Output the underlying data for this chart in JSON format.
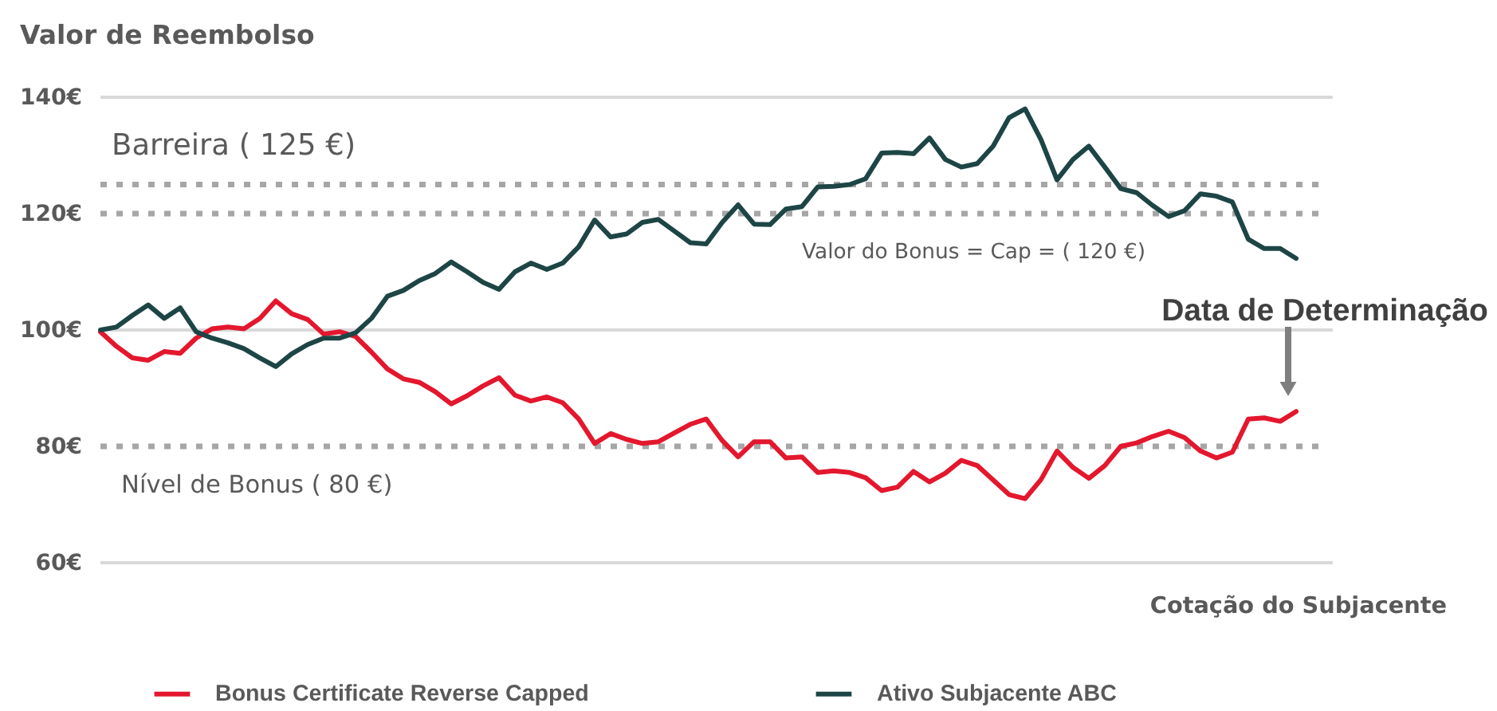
{
  "chart_data": {
    "type": "line",
    "ylabel": "Valor de Reembolso",
    "xlabel": "Cotação do Subjacente",
    "categories": [
      null,
      null,
      null,
      null,
      null,
      null,
      null,
      null,
      null,
      null,
      null,
      null,
      null,
      null,
      null,
      null,
      null,
      null,
      null,
      null,
      null,
      null,
      null,
      null,
      null,
      null,
      null,
      null,
      null,
      null,
      null,
      null,
      null,
      null,
      null,
      null,
      null,
      null,
      null,
      null,
      null,
      null,
      null,
      null,
      null,
      null,
      null,
      null,
      null,
      null,
      null,
      null,
      null,
      null,
      null,
      null,
      null,
      null,
      null,
      null,
      null,
      null,
      null,
      null,
      null,
      null,
      null,
      null,
      null,
      null,
      null,
      null,
      null,
      null,
      null,
      null
    ],
    "series": [
      {
        "name": "Bonus Certificate Reverse Capped",
        "color": "#e3172d",
        "values": [
          99.7,
          97.2,
          95.2,
          94.8,
          96.3,
          96,
          98.6,
          100.2,
          100.5,
          100.2,
          102,
          105,
          102.8,
          101.8,
          99.3,
          99.7,
          98.9,
          96.2,
          93.3,
          91.6,
          91,
          89.4,
          87.3,
          88.7,
          90.4,
          91.8,
          88.8,
          87.8,
          88.5,
          87.5,
          84.7,
          80.5,
          82.2,
          81.2,
          80.5,
          80.8,
          82.3,
          83.8,
          84.7,
          81,
          78.2,
          80.8,
          80.8,
          78,
          78.2,
          75.5,
          75.8,
          75.5,
          74.6,
          72.4,
          73,
          75.7,
          73.9,
          75.4,
          77.6,
          76.7,
          74.2,
          71.7,
          71,
          74.3,
          79.2,
          76.4,
          74.5,
          76.7,
          80,
          80.6,
          81.7,
          82.6,
          81.5,
          79.2,
          78,
          79,
          84.7,
          84.9,
          84.3,
          86
        ]
      },
      {
        "name": "Ativo Subjacente ABC",
        "color": "#1e4546",
        "values": [
          100,
          100.5,
          102.5,
          104.3,
          102,
          103.8,
          99.7,
          98.6,
          97.8,
          96.8,
          95.2,
          93.7,
          95.9,
          97.5,
          98.6,
          98.6,
          99.5,
          102,
          105.8,
          106.8,
          108.5,
          109.7,
          111.7,
          110,
          108.2,
          107,
          110,
          111.5,
          110.4,
          111.5,
          114.3,
          118.9,
          116,
          116.5,
          118.5,
          119,
          117,
          115,
          114.8,
          118.5,
          121.5,
          118.2,
          118.1,
          120.8,
          121.2,
          124.6,
          124.7,
          125,
          126,
          130.4,
          130.5,
          130.3,
          133,
          129.3,
          128,
          128.6,
          131.6,
          136.5,
          138,
          132.7,
          125.8,
          129.3,
          131.6,
          128,
          124.3,
          123.6,
          121.4,
          119.5,
          120.5,
          123.4,
          123,
          122,
          115.6,
          114,
          114,
          112.3
        ]
      }
    ],
    "ylim": [
      60,
      140
    ],
    "yticks": [
      {
        "value": 60,
        "label": "60€"
      },
      {
        "value": 80,
        "label": "80€"
      },
      {
        "value": 100,
        "label": "100€"
      },
      {
        "value": 120,
        "label": "120€"
      },
      {
        "value": 140,
        "label": "140€"
      }
    ],
    "legend": "bottom",
    "tick_labels": "y",
    "ref_lines": [
      {
        "axis": "y",
        "value": 125,
        "label": "Barreira ( 125 €)",
        "color": "#a6a6a6",
        "line_style": "dotted"
      },
      {
        "axis": "y",
        "value": 120,
        "label": "Valor do Bonus = Cap = ( 120 €)",
        "color": "#a6a6a6",
        "line_style": "dotted"
      },
      {
        "axis": "y",
        "value": 80,
        "label": "Nível de Bonus ( 80 €)",
        "color": "#a6a6a6",
        "line_style": "dotted"
      },
      {
        "axis": "y",
        "value": 100,
        "color": "#d9d9d9",
        "line_style": "solid"
      }
    ],
    "annotations": [
      "Data de Determinação"
    ]
  }
}
